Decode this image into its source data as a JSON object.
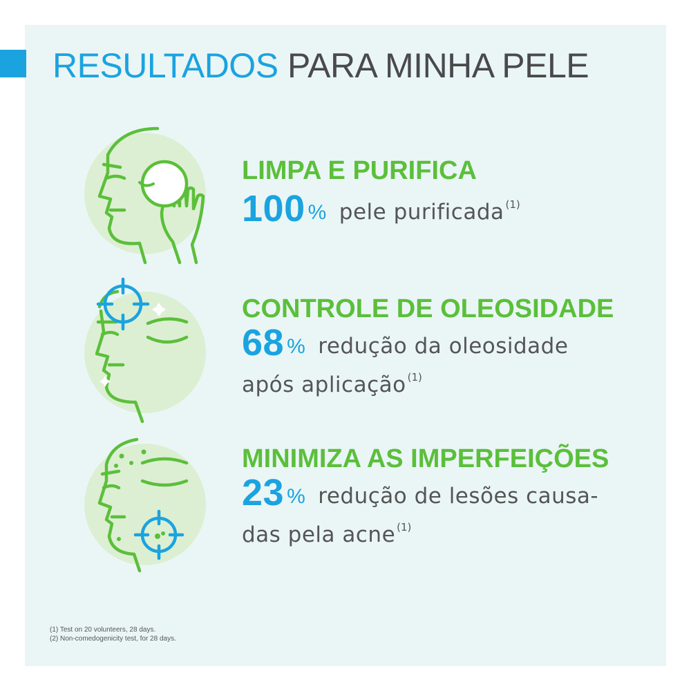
{
  "title": {
    "highlight": "RESULTADOS",
    "rest": "PARA MINHA PELE"
  },
  "benefits": [
    {
      "icon": "face-cleansing-pad-icon",
      "title": "LIMPA E PURIFICA",
      "value": "100",
      "unit": "%",
      "text": "pele purificada",
      "ref": "(1)"
    },
    {
      "icon": "face-oil-target-icon",
      "title": "CONTROLE DE OLEOSIDADE",
      "value": "68",
      "unit": "%",
      "text": "redução da oleosidade após aplicação",
      "ref": "(1)"
    },
    {
      "icon": "face-blemish-target-icon",
      "title": "MINIMIZA AS IMPERFEIÇÕES",
      "value": "23",
      "unit": "%",
      "text": "redução de lesões causa-das pela acne",
      "ref": "(1)"
    }
  ],
  "footnotes": [
    "(1) Test on 20 volunteers, 28 days.",
    "(2) Non-comedogenicity test, for 28 days."
  ],
  "colors": {
    "accent_blue": "#1ba3df",
    "accent_green": "#5bbf3a",
    "panel_bg": "#eaf6f6",
    "circle_bg": "#dcefd3"
  }
}
